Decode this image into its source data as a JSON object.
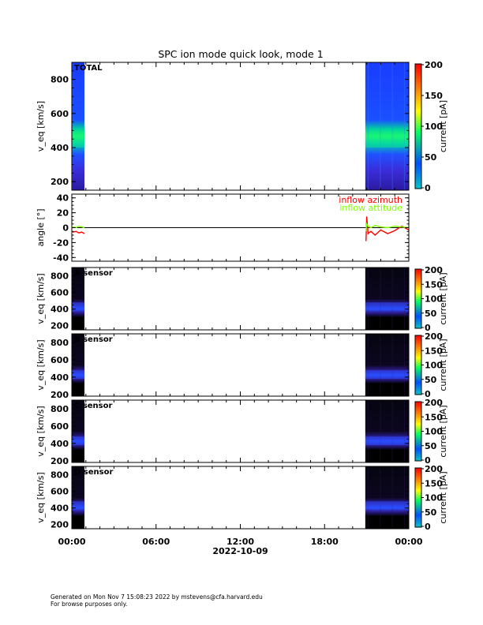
{
  "chart_data": {
    "title": "SPC ion mode quick look, mode 1",
    "x_axis": {
      "tick_labels": [
        "00:00",
        "06:00",
        "12:00",
        "18:00",
        "00:00"
      ],
      "date_label": "2022-10-09",
      "range_hours": [
        0,
        24
      ]
    },
    "colorbar": {
      "label": "current [pA]",
      "colors": [
        "#00c8c8",
        "#0050ff",
        "#00ff60",
        "#ffff00",
        "#ff8000",
        "#ff0000"
      ]
    },
    "panels": [
      {
        "type": "heatmap",
        "label": "TOTAL",
        "ylabel": "v_eq [km/s]",
        "ylim": [
          150,
          900
        ],
        "yticks": [
          200,
          400,
          600,
          800
        ],
        "colorbar_ticks": [
          0,
          50,
          100,
          150,
          200
        ],
        "data_intervals_hours": [
          [
            0,
            0.9
          ],
          [
            20.9,
            24
          ]
        ],
        "peak_band_kms": [
          400,
          480
        ]
      },
      {
        "type": "line",
        "ylabel": "angle [°]",
        "ylim": [
          -45,
          45
        ],
        "yticks": [
          -40,
          -20,
          0,
          20,
          40
        ],
        "series": [
          {
            "name": "inflow azimuth",
            "color": "#ff0000",
            "x": [
              0.05,
              0.3,
              0.5,
              0.7,
              0.9,
              20.95,
              21.0,
              21.1,
              21.3,
              21.6,
              22.0,
              22.5,
              23.0,
              23.5,
              24.0
            ],
            "y": [
              -6,
              -5,
              -7,
              -6,
              -8,
              -18,
              15,
              -8,
              -5,
              -10,
              -3,
              -8,
              -4,
              2,
              -3
            ]
          },
          {
            "name": "inflow attitude",
            "color": "#80ff00",
            "x": [
              0.05,
              0.3,
              0.5,
              0.7,
              0.9,
              20.95,
              21.0,
              21.1,
              21.3,
              21.6,
              22.0,
              22.5,
              23.0,
              23.5,
              24.0
            ],
            "y": [
              1,
              0,
              2,
              1,
              0,
              -5,
              5,
              2,
              0,
              3,
              1,
              0,
              2,
              1,
              0
            ]
          }
        ]
      },
      {
        "type": "heatmap",
        "label": "A sensor",
        "ylabel": "v_eq [km/s]",
        "ylim": [
          150,
          900
        ],
        "yticks": [
          200,
          400,
          600,
          800
        ],
        "colorbar_ticks": [
          0,
          50,
          100,
          150,
          200
        ],
        "data_intervals_hours": [
          [
            0,
            0.9
          ],
          [
            20.9,
            24
          ]
        ],
        "peak_band_kms": [
          380,
          480
        ]
      },
      {
        "type": "heatmap",
        "label": "B sensor",
        "ylabel": "v_eq [km/s]",
        "ylim": [
          180,
          900
        ],
        "yticks": [
          200,
          400,
          600,
          800
        ],
        "colorbar_ticks": [
          0,
          50,
          100,
          150,
          200
        ],
        "data_intervals_hours": [
          [
            0,
            0.9
          ],
          [
            20.9,
            24
          ]
        ],
        "peak_band_kms": [
          380,
          480
        ]
      },
      {
        "type": "heatmap",
        "label": "C sensor",
        "ylabel": "v_eq [km/s]",
        "ylim": [
          180,
          900
        ],
        "yticks": [
          200,
          400,
          600,
          800
        ],
        "colorbar_ticks": [
          0,
          50,
          100,
          150,
          200
        ],
        "data_intervals_hours": [
          [
            0,
            0.9
          ],
          [
            20.9,
            24
          ]
        ],
        "peak_band_kms": [
          380,
          480
        ]
      },
      {
        "type": "heatmap",
        "label": "D sensor",
        "ylabel": "v_eq [km/s]",
        "ylim": [
          150,
          900
        ],
        "yticks": [
          200,
          400,
          600,
          800
        ],
        "colorbar_ticks": [
          0,
          50,
          100,
          150,
          200
        ],
        "data_intervals_hours": [
          [
            0,
            0.9
          ],
          [
            20.9,
            24
          ]
        ],
        "peak_band_kms": [
          380,
          480
        ]
      }
    ]
  },
  "footer": {
    "line1": "Generated on Mon Nov  7 15:08:23 2022 by mstevens@cfa.harvard.edu",
    "line2": "For browse purposes only."
  }
}
